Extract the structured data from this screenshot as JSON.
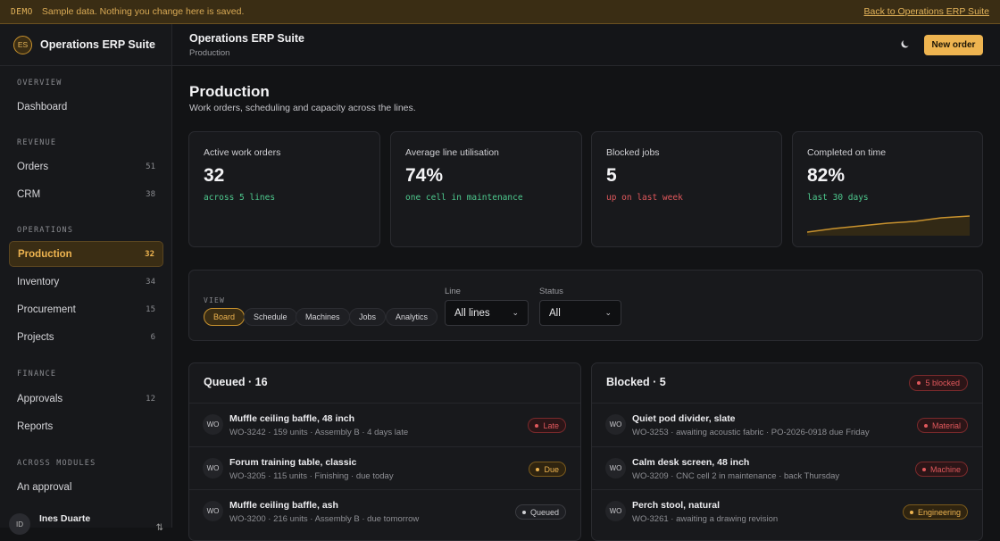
{
  "banner": {
    "tag": "DEMO",
    "message": "Sample data. Nothing you change here is saved.",
    "back_link": "Back to Operations ERP Suite"
  },
  "sidebar": {
    "brand_initials": "ES",
    "brand_name": "Operations ERP Suite",
    "sections": [
      {
        "label": "OVERVIEW",
        "items": [
          {
            "label": "Dashboard",
            "count": ""
          }
        ]
      },
      {
        "label": "REVENUE",
        "items": [
          {
            "label": "Orders",
            "count": "51"
          },
          {
            "label": "CRM",
            "count": "38"
          }
        ]
      },
      {
        "label": "OPERATIONS",
        "items": [
          {
            "label": "Production",
            "count": "32",
            "active": true
          },
          {
            "label": "Inventory",
            "count": "34"
          },
          {
            "label": "Procurement",
            "count": "15"
          },
          {
            "label": "Projects",
            "count": "6"
          }
        ]
      },
      {
        "label": "FINANCE",
        "items": [
          {
            "label": "Approvals",
            "count": "12"
          },
          {
            "label": "Reports",
            "count": ""
          }
        ]
      },
      {
        "label": "ACROSS MODULES",
        "items": [
          {
            "label": "An approval",
            "count": ""
          }
        ]
      }
    ],
    "user": {
      "initials": "ID",
      "name": "Ines Duarte"
    }
  },
  "header": {
    "title": "Operations ERP Suite",
    "subtitle": "Production",
    "theme_icon": "moon-icon",
    "new_button": "New order"
  },
  "page": {
    "title": "Production",
    "subtitle": "Work orders, scheduling and capacity across the lines."
  },
  "stats": [
    {
      "label": "Active work orders",
      "value": "32",
      "note": "across 5 lines",
      "tone": "green"
    },
    {
      "label": "Average line utilisation",
      "value": "74%",
      "note": "one cell in maintenance",
      "tone": "green"
    },
    {
      "label": "Blocked jobs",
      "value": "5",
      "note": "up on last week",
      "tone": "red"
    },
    {
      "label": "Completed on time",
      "value": "82%",
      "note": "last 30 days",
      "tone": "green"
    }
  ],
  "filters": {
    "view_label": "VIEW",
    "views": [
      "Board",
      "Schedule",
      "Machines",
      "Jobs",
      "Analytics"
    ],
    "active_view": "Board",
    "line_label": "Line",
    "line_value": "All lines",
    "status_label": "Status",
    "status_value": "All"
  },
  "queued": {
    "title": "Queued · 16",
    "rows": [
      {
        "avatar": "WO",
        "title": "Muffle ceiling baffle, 48 inch",
        "sub": "WO-3242 · 159 units · Assembly B · 4 days late",
        "badge": "Late",
        "tone": "red"
      },
      {
        "avatar": "WO",
        "title": "Forum training table, classic",
        "sub": "WO-3205 · 115 units · Finishing · due today",
        "badge": "Due",
        "tone": "amber"
      },
      {
        "avatar": "WO",
        "title": "Muffle ceiling baffle, ash",
        "sub": "WO-3200 · 216 units · Assembly B · due tomorrow",
        "badge": "Queued",
        "tone": "gray"
      }
    ]
  },
  "blocked": {
    "title": "Blocked · 5",
    "header_badge": "5 blocked",
    "rows": [
      {
        "avatar": "WO",
        "title": "Quiet pod divider, slate",
        "sub": "WO-3253 · awaiting acoustic fabric · PO-2026-0918 due Friday",
        "badge": "Material",
        "tone": "red"
      },
      {
        "avatar": "WO",
        "title": "Calm desk screen, 48 inch",
        "sub": "WO-3209 · CNC cell 2 in maintenance · back Thursday",
        "badge": "Machine",
        "tone": "red"
      },
      {
        "avatar": "WO",
        "title": "Perch stool, natural",
        "sub": "WO-3261 · awaiting a drawing revision",
        "badge": "Engineering",
        "tone": "amber"
      }
    ]
  },
  "colors": {
    "accent": "#eeb450",
    "positive": "#4ec98e",
    "negative": "#e0585c"
  }
}
